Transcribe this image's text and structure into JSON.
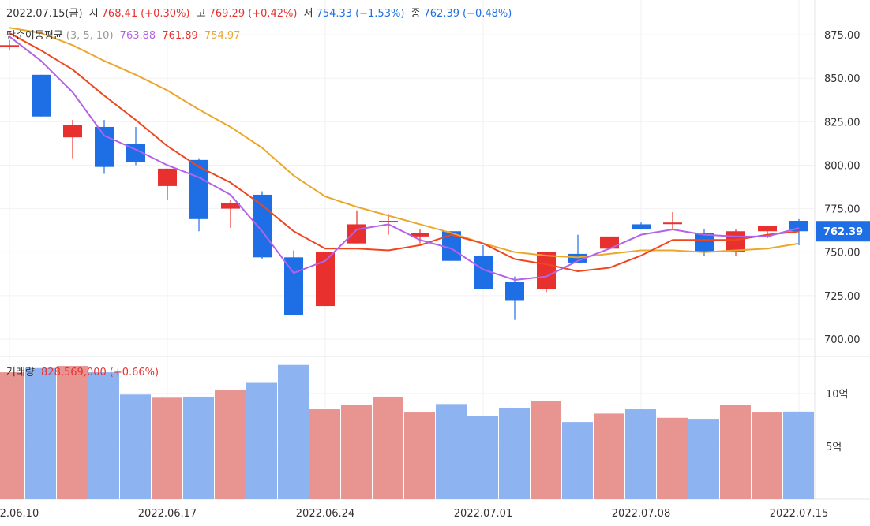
{
  "header": {
    "date": "2022.07.15(금)",
    "open_label": "시",
    "open_value": "768.41",
    "open_change": "(+0.30%)",
    "high_label": "고",
    "high_value": "769.29",
    "high_change": "(+0.42%)",
    "low_label": "저",
    "low_value": "754.33",
    "low_change": "(−1.53%)",
    "close_label": "종",
    "close_value": "762.39",
    "close_change": "(−0.48%)"
  },
  "ma_legend": {
    "label": "단순이동평균",
    "params": "(3, 5, 10)",
    "ma3": "763.88",
    "ma5": "761.89",
    "ma10": "754.97"
  },
  "volume_legend": {
    "label": "거래량",
    "value": "828,569,000",
    "change": "(+0.66%)"
  },
  "price_tag": "762.39",
  "colors": {
    "up": "#e8312f",
    "down": "#1e6ee6",
    "vol_up": "#e89491",
    "vol_down": "#8db3f0",
    "ma3": "#b462e8",
    "ma5": "#f0461e",
    "ma10": "#eba72c"
  },
  "chart_data": {
    "type": "candlestick",
    "dates": [
      "2022.06.10",
      "2022.06.13",
      "2022.06.14",
      "2022.06.15",
      "2022.06.16",
      "2022.06.17",
      "2022.06.20",
      "2022.06.21",
      "2022.06.22",
      "2022.06.23",
      "2022.06.24",
      "2022.06.27",
      "2022.06.28",
      "2022.06.29",
      "2022.06.30",
      "2022.07.01",
      "2022.07.04",
      "2022.07.05",
      "2022.07.06",
      "2022.07.07",
      "2022.07.08",
      "2022.07.11",
      "2022.07.12",
      "2022.07.13",
      "2022.07.14",
      "2022.07.15"
    ],
    "x_tick_labels": [
      "2022.06.10",
      "2022.06.17",
      "2022.06.24",
      "2022.07.01",
      "2022.07.08",
      "2022.07.15"
    ],
    "y_ticks": [
      700,
      725,
      750,
      775,
      800,
      825,
      850,
      875
    ],
    "y_tick_labels": [
      "700.00",
      "725.00",
      "750.00",
      "775.00",
      "800.00",
      "825.00",
      "850.00",
      "875.00"
    ],
    "ylim": [
      690,
      895
    ],
    "ohlc": [
      [
        869,
        872,
        866,
        869
      ],
      [
        852,
        852,
        828,
        828
      ],
      [
        816,
        826,
        804,
        823
      ],
      [
        822,
        826,
        795,
        799
      ],
      [
        812,
        822,
        800,
        802
      ],
      [
        788,
        798,
        780,
        798
      ],
      [
        803,
        804,
        762,
        769
      ],
      [
        775,
        780,
        764,
        778
      ],
      [
        783,
        785,
        746,
        747
      ],
      [
        747,
        751,
        714,
        714
      ],
      [
        719,
        750,
        719,
        750
      ],
      [
        755,
        774,
        755,
        766
      ],
      [
        768,
        772,
        760,
        768
      ],
      [
        759,
        763,
        755,
        761
      ],
      [
        762,
        762,
        745,
        745
      ],
      [
        748,
        754,
        729,
        729
      ],
      [
        733,
        736,
        711,
        722
      ],
      [
        729,
        750,
        727,
        750
      ],
      [
        749,
        760,
        744,
        744
      ],
      [
        752,
        759,
        752,
        759
      ],
      [
        766,
        767,
        763,
        763
      ],
      [
        767,
        773,
        763,
        767
      ],
      [
        761,
        763,
        748,
        750
      ],
      [
        750,
        763,
        748,
        762
      ],
      [
        762,
        765,
        758,
        765
      ],
      [
        768,
        769,
        754,
        762
      ]
    ],
    "ma3": [
      874,
      860,
      842,
      817,
      809,
      800,
      793,
      783,
      762,
      738,
      745,
      763,
      766,
      757,
      752,
      740,
      734,
      736,
      745,
      752,
      760,
      763,
      760,
      759,
      759,
      763.88
    ],
    "ma5": [
      876,
      866,
      855,
      840,
      826,
      811,
      799,
      790,
      777,
      762,
      752,
      752,
      751,
      754,
      760,
      755,
      746,
      743,
      739,
      741,
      748,
      757,
      757,
      757,
      760,
      761.89
    ],
    "ma10": [
      879,
      876,
      869,
      860,
      852,
      843,
      832,
      822,
      810,
      794,
      782,
      776,
      771,
      766,
      761,
      755,
      750,
      748,
      747,
      749,
      751,
      751,
      750,
      751,
      752,
      754.97
    ],
    "volume_unit": "억",
    "volume": [
      12.0,
      12.4,
      12.6,
      12.0,
      9.9,
      9.6,
      9.7,
      10.3,
      11.0,
      12.7,
      8.5,
      8.9,
      9.7,
      8.2,
      9.0,
      7.9,
      8.6,
      9.3,
      7.3,
      8.1,
      8.5,
      7.7,
      7.6,
      8.9,
      8.2,
      8.29
    ],
    "volume_ticks": [
      5,
      10
    ],
    "volume_tick_labels": [
      "5억",
      "10억"
    ],
    "volume_ylim": [
      0,
      13.5
    ]
  }
}
